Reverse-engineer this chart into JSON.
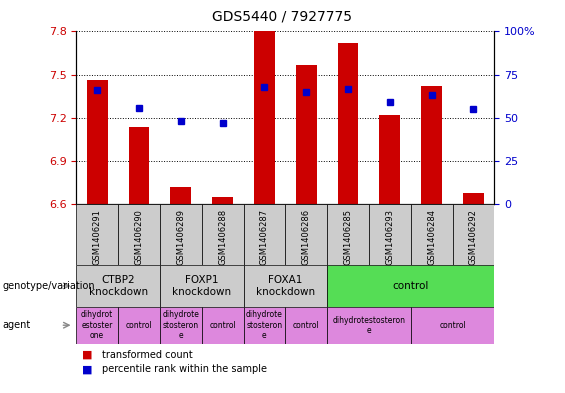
{
  "title": "GDS5440 / 7927775",
  "samples": [
    "GSM1406291",
    "GSM1406290",
    "GSM1406289",
    "GSM1406288",
    "GSM1406287",
    "GSM1406286",
    "GSM1406285",
    "GSM1406293",
    "GSM1406284",
    "GSM1406292"
  ],
  "transformed_count": [
    7.46,
    7.14,
    6.72,
    6.65,
    7.8,
    7.57,
    7.72,
    7.22,
    7.42,
    6.68
  ],
  "percentile_rank": [
    66,
    56,
    48,
    47,
    68,
    65,
    67,
    59,
    63,
    55
  ],
  "ylim_left": [
    6.6,
    7.8
  ],
  "ylim_right": [
    0,
    100
  ],
  "yticks_left": [
    6.6,
    6.9,
    7.2,
    7.5,
    7.8
  ],
  "yticks_right": [
    0,
    25,
    50,
    75,
    100
  ],
  "bar_color": "#cc0000",
  "dot_color": "#0000cc",
  "bar_bottom": 6.6,
  "genotype_groups": [
    {
      "label": "CTBP2\nknockdown",
      "start": 0,
      "end": 2,
      "color": "#cccccc"
    },
    {
      "label": "FOXP1\nknockdown",
      "start": 2,
      "end": 4,
      "color": "#cccccc"
    },
    {
      "label": "FOXA1\nknockdown",
      "start": 4,
      "end": 6,
      "color": "#cccccc"
    },
    {
      "label": "control",
      "start": 6,
      "end": 10,
      "color": "#55dd55"
    }
  ],
  "agent_groups": [
    {
      "label": "dihydrot\nestoster\none",
      "start": 0,
      "end": 1,
      "color": "#dd88dd"
    },
    {
      "label": "control",
      "start": 1,
      "end": 2,
      "color": "#dd88dd"
    },
    {
      "label": "dihydrote\nstosteron\ne",
      "start": 2,
      "end": 3,
      "color": "#dd88dd"
    },
    {
      "label": "control",
      "start": 3,
      "end": 4,
      "color": "#dd88dd"
    },
    {
      "label": "dihydrote\nstosteron\ne",
      "start": 4,
      "end": 5,
      "color": "#dd88dd"
    },
    {
      "label": "control",
      "start": 5,
      "end": 6,
      "color": "#dd88dd"
    },
    {
      "label": "dihydrotestosteron\ne",
      "start": 6,
      "end": 8,
      "color": "#dd88dd"
    },
    {
      "label": "control",
      "start": 8,
      "end": 10,
      "color": "#dd88dd"
    }
  ],
  "legend_items": [
    {
      "label": "transformed count",
      "color": "#cc0000"
    },
    {
      "label": "percentile rank within the sample",
      "color": "#0000cc"
    }
  ],
  "left_label_color": "#cc0000",
  "right_label_color": "#0000cc",
  "sample_box_color": "#cccccc",
  "left_panel_labels": [
    {
      "text": "genotype/variation",
      "row": "geno"
    },
    {
      "text": "agent",
      "row": "agent"
    }
  ]
}
